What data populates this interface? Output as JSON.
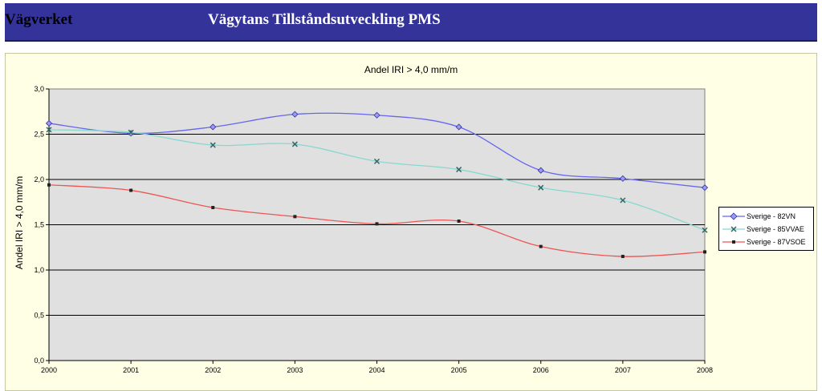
{
  "header": {
    "brand": "Vägverket",
    "title": "Vägytans Tillståndsutveckling PMS"
  },
  "colors": {
    "header_bg": "#333399",
    "panel_bg": "#ffffe5",
    "plot_bg": "#e0e0e0"
  },
  "chart_data": {
    "type": "line",
    "title": "Andel IRI > 4,0 mm/m",
    "xlabel": "",
    "ylabel": "Andel IRI > 4,0 mm/m",
    "categories": [
      "2000",
      "2001",
      "2002",
      "2003",
      "2004",
      "2005",
      "2006",
      "2007",
      "2008"
    ],
    "ylim": [
      0,
      3.0
    ],
    "yticks": [
      "0,0",
      "0,5",
      "1,0",
      "1,5",
      "2,0",
      "2,5",
      "3,0"
    ],
    "grid": true,
    "legend_position": "right",
    "series": [
      {
        "name": "Sverige - 82VN",
        "color": "#6666ee",
        "marker": "diamond-icon",
        "values": [
          2.62,
          2.51,
          2.58,
          2.72,
          2.71,
          2.58,
          2.1,
          2.01,
          1.91
        ]
      },
      {
        "name": "Sverige - 85VVAE",
        "color": "#88d8d0",
        "marker": "x-icon",
        "values": [
          2.55,
          2.52,
          2.38,
          2.39,
          2.2,
          2.11,
          1.91,
          1.77,
          1.44
        ]
      },
      {
        "name": "Sverige - 87VSOE",
        "color": "#ee5555",
        "marker": "square-icon",
        "values": [
          1.94,
          1.88,
          1.69,
          1.59,
          1.51,
          1.54,
          1.26,
          1.15,
          1.2
        ]
      }
    ]
  }
}
